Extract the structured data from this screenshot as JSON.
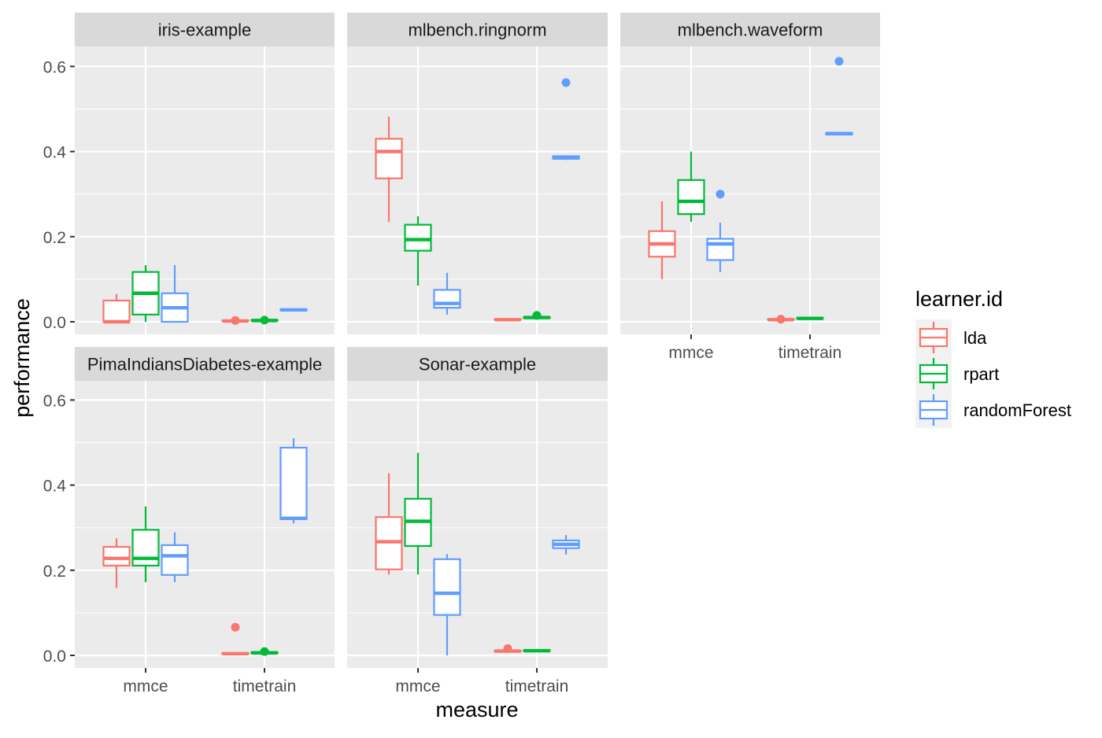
{
  "chart_data": {
    "type": "boxplot",
    "xlabel": "measure",
    "ylabel": "performance",
    "categories": [
      "mmce",
      "timetrain"
    ],
    "ylim": [
      -0.03,
      0.64
    ],
    "yticks": [
      0.0,
      0.2,
      0.4,
      0.6
    ],
    "ytick_labels": [
      "0.0",
      "0.2",
      "0.4",
      "0.6"
    ],
    "facet_layout": "3 columns x 2 rows",
    "legend": {
      "title": "learner.id",
      "position": "right",
      "entries": [
        {
          "name": "lda",
          "color": "#F8766D"
        },
        {
          "name": "rpart",
          "color": "#00BA38"
        },
        {
          "name": "randomForest",
          "color": "#619CFF"
        }
      ]
    },
    "panels": [
      {
        "title": "iris-example",
        "boxes": [
          {
            "learner": "lda",
            "measure": "mmce",
            "min": 0.0,
            "q1": 0.0,
            "median": 0.0,
            "q3": 0.05,
            "max": 0.065,
            "outliers": []
          },
          {
            "learner": "rpart",
            "measure": "mmce",
            "min": 0.0,
            "q1": 0.017,
            "median": 0.067,
            "q3": 0.117,
            "max": 0.133,
            "outliers": []
          },
          {
            "learner": "randomForest",
            "measure": "mmce",
            "min": 0.0,
            "q1": 0.0,
            "median": 0.033,
            "q3": 0.067,
            "max": 0.133,
            "outliers": []
          },
          {
            "learner": "lda",
            "measure": "timetrain",
            "min": 0.001,
            "q1": 0.002,
            "median": 0.002,
            "q3": 0.003,
            "max": 0.004,
            "outliers": [
              0.003
            ]
          },
          {
            "learner": "rpart",
            "measure": "timetrain",
            "min": 0.002,
            "q1": 0.003,
            "median": 0.003,
            "q3": 0.004,
            "max": 0.005,
            "outliers": [
              0.004
            ]
          },
          {
            "learner": "randomForest",
            "measure": "timetrain",
            "min": 0.026,
            "q1": 0.027,
            "median": 0.028,
            "q3": 0.029,
            "max": 0.031,
            "outliers": []
          }
        ]
      },
      {
        "title": "mlbench.ringnorm",
        "boxes": [
          {
            "learner": "lda",
            "measure": "mmce",
            "min": 0.235,
            "q1": 0.337,
            "median": 0.4,
            "q3": 0.43,
            "max": 0.482,
            "outliers": []
          },
          {
            "learner": "rpart",
            "measure": "mmce",
            "min": 0.085,
            "q1": 0.167,
            "median": 0.193,
            "q3": 0.228,
            "max": 0.248,
            "outliers": []
          },
          {
            "learner": "randomForest",
            "measure": "mmce",
            "min": 0.017,
            "q1": 0.033,
            "median": 0.043,
            "q3": 0.075,
            "max": 0.115,
            "outliers": []
          },
          {
            "learner": "lda",
            "measure": "timetrain",
            "min": 0.004,
            "q1": 0.005,
            "median": 0.005,
            "q3": 0.006,
            "max": 0.007,
            "outliers": []
          },
          {
            "learner": "rpart",
            "measure": "timetrain",
            "min": 0.008,
            "q1": 0.009,
            "median": 0.01,
            "q3": 0.011,
            "max": 0.012,
            "outliers": [
              0.015
            ]
          },
          {
            "learner": "randomForest",
            "measure": "timetrain",
            "min": 0.38,
            "q1": 0.383,
            "median": 0.385,
            "q3": 0.389,
            "max": 0.39,
            "outliers": [
              0.562
            ]
          }
        ]
      },
      {
        "title": "mlbench.waveform",
        "boxes": [
          {
            "learner": "lda",
            "measure": "mmce",
            "min": 0.1,
            "q1": 0.153,
            "median": 0.183,
            "q3": 0.213,
            "max": 0.283,
            "outliers": []
          },
          {
            "learner": "rpart",
            "measure": "mmce",
            "min": 0.235,
            "q1": 0.253,
            "median": 0.283,
            "q3": 0.333,
            "max": 0.4,
            "outliers": []
          },
          {
            "learner": "randomForest",
            "measure": "mmce",
            "min": 0.117,
            "q1": 0.145,
            "median": 0.183,
            "q3": 0.195,
            "max": 0.233,
            "outliers": [
              0.3
            ]
          },
          {
            "learner": "lda",
            "measure": "timetrain",
            "min": 0.004,
            "q1": 0.005,
            "median": 0.005,
            "q3": 0.006,
            "max": 0.007,
            "outliers": [
              0.006
            ]
          },
          {
            "learner": "rpart",
            "measure": "timetrain",
            "min": 0.007,
            "q1": 0.008,
            "median": 0.008,
            "q3": 0.009,
            "max": 0.01,
            "outliers": []
          },
          {
            "learner": "randomForest",
            "measure": "timetrain",
            "min": 0.438,
            "q1": 0.44,
            "median": 0.442,
            "q3": 0.444,
            "max": 0.446,
            "outliers": [
              0.612
            ]
          }
        ]
      },
      {
        "title": "PimaIndiansDiabetes-example",
        "boxes": [
          {
            "learner": "lda",
            "measure": "mmce",
            "min": 0.158,
            "q1": 0.211,
            "median": 0.228,
            "q3": 0.255,
            "max": 0.275,
            "outliers": []
          },
          {
            "learner": "rpart",
            "measure": "mmce",
            "min": 0.172,
            "q1": 0.211,
            "median": 0.228,
            "q3": 0.295,
            "max": 0.35,
            "outliers": []
          },
          {
            "learner": "randomForest",
            "measure": "mmce",
            "min": 0.172,
            "q1": 0.189,
            "median": 0.234,
            "q3": 0.259,
            "max": 0.289,
            "outliers": []
          },
          {
            "learner": "lda",
            "measure": "timetrain",
            "min": 0.002,
            "q1": 0.003,
            "median": 0.004,
            "q3": 0.005,
            "max": 0.006,
            "outliers": [
              0.066
            ]
          },
          {
            "learner": "rpart",
            "measure": "timetrain",
            "min": 0.004,
            "q1": 0.005,
            "median": 0.006,
            "q3": 0.007,
            "max": 0.008,
            "outliers": [
              0.009
            ]
          },
          {
            "learner": "randomForest",
            "measure": "timetrain",
            "min": 0.31,
            "q1": 0.32,
            "median": 0.322,
            "q3": 0.488,
            "max": 0.51,
            "outliers": []
          }
        ]
      },
      {
        "title": "Sonar-example",
        "boxes": [
          {
            "learner": "lda",
            "measure": "mmce",
            "min": 0.19,
            "q1": 0.202,
            "median": 0.267,
            "q3": 0.325,
            "max": 0.428,
            "outliers": []
          },
          {
            "learner": "rpart",
            "measure": "mmce",
            "min": 0.19,
            "q1": 0.257,
            "median": 0.315,
            "q3": 0.368,
            "max": 0.476,
            "outliers": []
          },
          {
            "learner": "randomForest",
            "measure": "mmce",
            "min": 0.0,
            "q1": 0.095,
            "median": 0.146,
            "q3": 0.226,
            "max": 0.238,
            "outliers": []
          },
          {
            "learner": "lda",
            "measure": "timetrain",
            "min": 0.008,
            "q1": 0.009,
            "median": 0.01,
            "q3": 0.011,
            "max": 0.012,
            "outliers": [
              0.016
            ]
          },
          {
            "learner": "rpart",
            "measure": "timetrain",
            "min": 0.009,
            "q1": 0.01,
            "median": 0.011,
            "q3": 0.012,
            "max": 0.013,
            "outliers": []
          },
          {
            "learner": "randomForest",
            "measure": "timetrain",
            "min": 0.237,
            "q1": 0.252,
            "median": 0.261,
            "q3": 0.27,
            "max": 0.283,
            "outliers": []
          }
        ]
      }
    ]
  }
}
